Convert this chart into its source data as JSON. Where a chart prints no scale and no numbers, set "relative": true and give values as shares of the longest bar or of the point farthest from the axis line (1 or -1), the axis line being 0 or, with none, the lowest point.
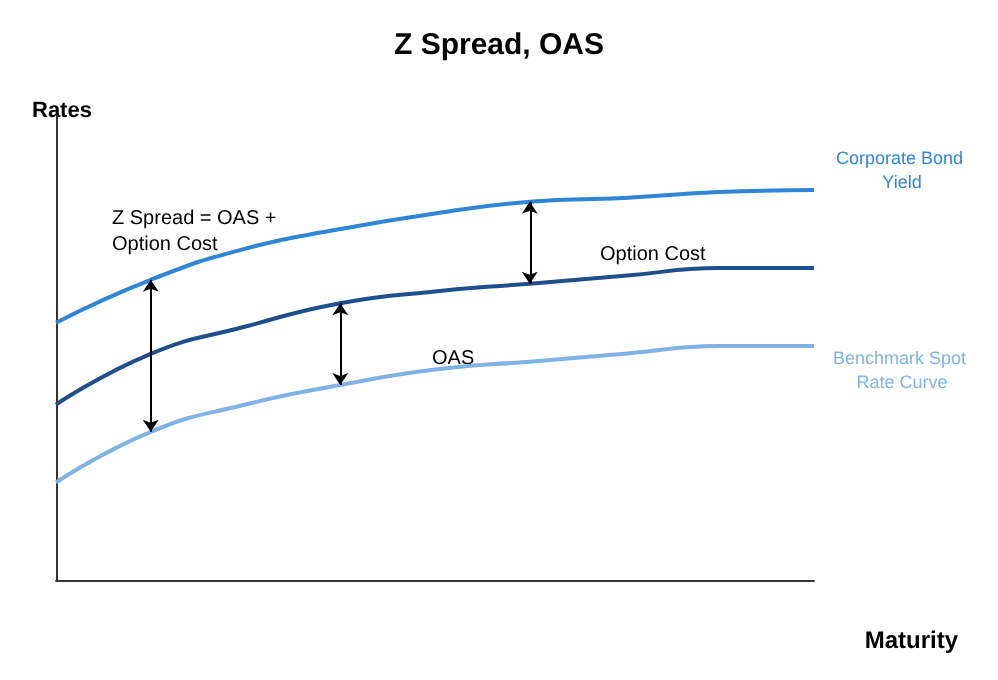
{
  "chart_data": {
    "type": "line",
    "title": "Z Spread, OAS",
    "xlabel": "Maturity",
    "ylabel": "Rates",
    "relative": true,
    "categories": [
      null,
      null,
      null,
      null,
      null,
      null,
      null,
      null,
      null
    ],
    "series": [
      {
        "name": "Corporate Bond Yield",
        "color": "#2f86d6",
        "values": [
          0.66,
          0.77,
          0.85,
          0.9,
          0.94,
          0.97,
          0.98,
          0.995,
          1
        ]
      },
      {
        "color": "#1f4e8c",
        "values": [
          0.45,
          0.58,
          0.65,
          0.71,
          0.74,
          0.76,
          0.78,
          0.8,
          0.8
        ]
      },
      {
        "name": "Benchmark Spot Rate Curve",
        "color": "#7fb3e6",
        "values": [
          0.25,
          0.38,
          0.45,
          0.5,
          0.54,
          0.56,
          0.58,
          0.6,
          0.6
        ]
      }
    ],
    "annotations": [
      "Z Spread = OAS + Option Cost",
      "Option Cost",
      "OAS"
    ],
    "grid": false,
    "legend": false,
    "marker": "none",
    "line_style": "solid"
  }
}
